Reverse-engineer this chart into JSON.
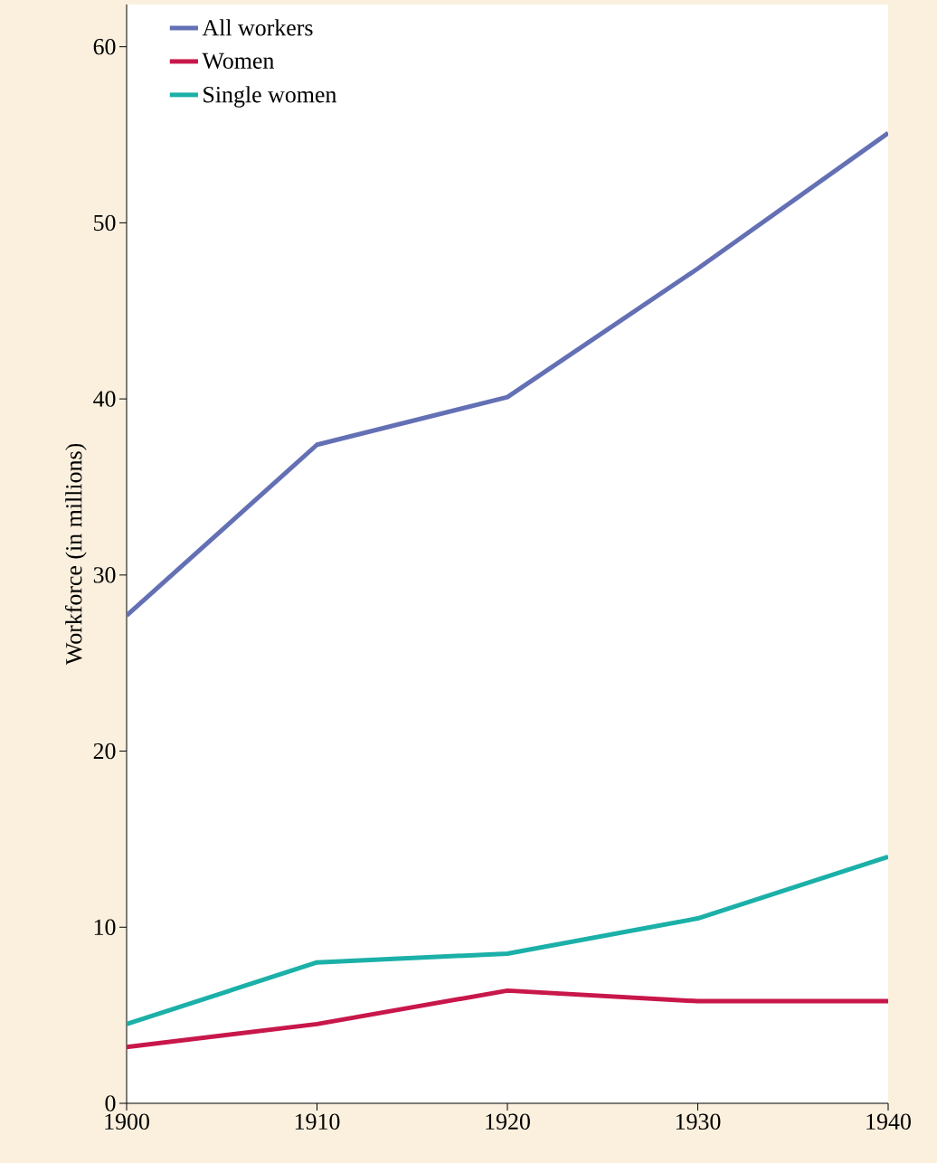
{
  "chart_data": {
    "type": "line",
    "ylabel": "Workforce (in millions)",
    "x": [
      1900,
      1910,
      1920,
      1930,
      1940
    ],
    "series": [
      {
        "name": "All workers",
        "color": "#6470b4",
        "values": [
          27.7,
          37.4,
          40.1,
          47.4,
          55.1
        ]
      },
      {
        "name": "Women",
        "color": "#c8174a",
        "values": [
          3.2,
          4.5,
          6.4,
          5.8,
          5.8
        ]
      },
      {
        "name": "Single women",
        "color": "#1bb0a8",
        "values": [
          4.5,
          8.0,
          8.5,
          10.5,
          14.0
        ]
      }
    ],
    "xlim": [
      1900,
      1940
    ],
    "ylim": [
      0,
      62.4
    ],
    "xticks": [
      1900,
      1910,
      1920,
      1930,
      1940
    ],
    "yticks": [
      0,
      10,
      20,
      30,
      40,
      50,
      60
    ],
    "legend": "top left",
    "grid": false,
    "line_style": "solid"
  }
}
